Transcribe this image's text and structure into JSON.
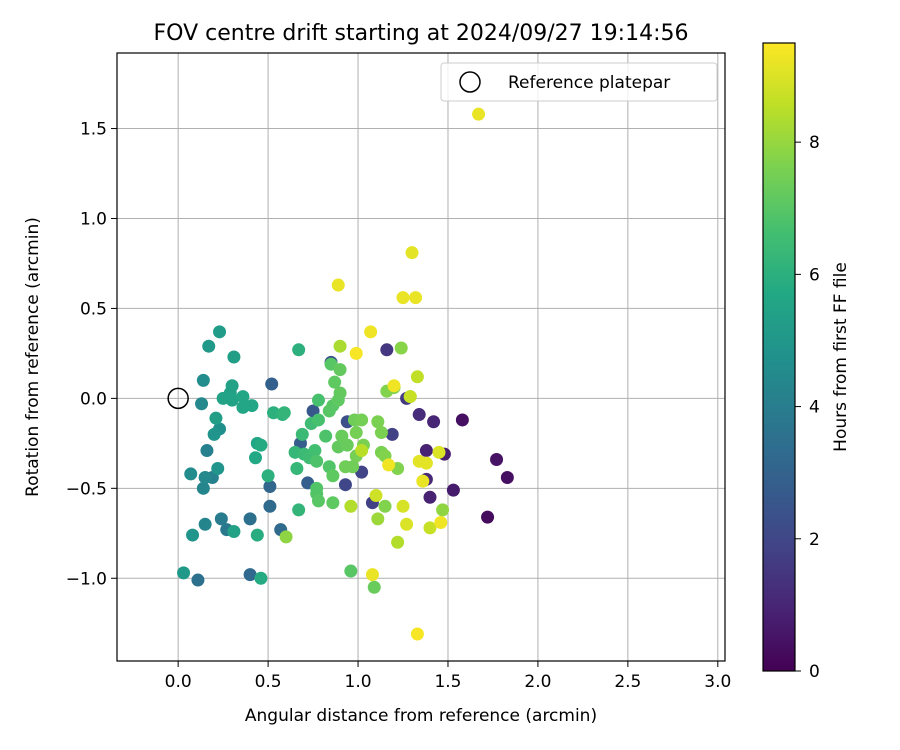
{
  "chart_data": {
    "type": "scatter",
    "title": "FOV centre drift starting at 2024/09/27 19:14:56",
    "xlabel": "Angular distance from reference (arcmin)",
    "ylabel": "Rotation from reference (arcmin)",
    "xlim": [
      -0.34,
      3.04
    ],
    "ylim": [
      -1.46,
      1.92
    ],
    "xticks": [
      "0.0",
      "0.5",
      "1.0",
      "1.5",
      "2.0",
      "2.5",
      "3.0"
    ],
    "xtick_values": [
      0,
      0.5,
      1.0,
      1.5,
      2.0,
      2.5,
      3.0
    ],
    "yticks": [
      "−1.0",
      "−0.5",
      "0.0",
      "0.5",
      "1.0",
      "1.5"
    ],
    "ytick_values": [
      -1.0,
      -0.5,
      0.0,
      0.5,
      1.0,
      1.5
    ],
    "grid": true,
    "legend": {
      "placement": "top-right",
      "entries": [
        "Reference platepar"
      ]
    },
    "reference_point": {
      "x": 0.0,
      "y": 0.0
    },
    "colorbar": {
      "label": "Hours from first FF file",
      "range": [
        0,
        9.5
      ],
      "ticks": [
        "0",
        "2",
        "4",
        "6",
        "8"
      ],
      "tick_values": [
        0,
        2,
        4,
        6,
        8
      ],
      "colormap": "viridis"
    },
    "points": [
      {
        "x": 1.58,
        "y": -0.12,
        "c": 0.4
      },
      {
        "x": 1.77,
        "y": -0.34,
        "c": 0.5
      },
      {
        "x": 1.83,
        "y": -0.44,
        "c": 0.4
      },
      {
        "x": 1.72,
        "y": -0.66,
        "c": 0.3
      },
      {
        "x": 1.53,
        "y": -0.51,
        "c": 0.7
      },
      {
        "x": 1.48,
        "y": -0.31,
        "c": 0.8
      },
      {
        "x": 1.42,
        "y": -0.13,
        "c": 1.0
      },
      {
        "x": 1.34,
        "y": -0.09,
        "c": 1.2
      },
      {
        "x": 1.38,
        "y": -0.29,
        "c": 0.9
      },
      {
        "x": 1.4,
        "y": -0.55,
        "c": 0.9
      },
      {
        "x": 1.38,
        "y": -0.45,
        "c": 1.1
      },
      {
        "x": 1.27,
        "y": 0.0,
        "c": 1.6
      },
      {
        "x": 1.16,
        "y": 0.27,
        "c": 1.5
      },
      {
        "x": 1.19,
        "y": -0.2,
        "c": 1.8
      },
      {
        "x": 1.08,
        "y": -0.58,
        "c": 1.8
      },
      {
        "x": 1.02,
        "y": -0.41,
        "c": 1.9
      },
      {
        "x": 0.93,
        "y": -0.48,
        "c": 2.0
      },
      {
        "x": 0.94,
        "y": -0.13,
        "c": 2.3
      },
      {
        "x": 0.85,
        "y": 0.2,
        "c": 2.4
      },
      {
        "x": 0.75,
        "y": -0.07,
        "c": 2.6
      },
      {
        "x": 0.72,
        "y": -0.47,
        "c": 2.8
      },
      {
        "x": 0.68,
        "y": -0.25,
        "c": 2.8
      },
      {
        "x": 0.52,
        "y": 0.08,
        "c": 2.9
      },
      {
        "x": 0.51,
        "y": -0.49,
        "c": 3.1
      },
      {
        "x": 0.51,
        "y": -0.6,
        "c": 3.3
      },
      {
        "x": 0.4,
        "y": -0.98,
        "c": 3.2
      },
      {
        "x": 0.57,
        "y": -0.73,
        "c": 3.3
      },
      {
        "x": 0.4,
        "y": -0.67,
        "c": 3.5
      },
      {
        "x": 0.11,
        "y": -1.01,
        "c": 3.5
      },
      {
        "x": 0.27,
        "y": -0.73,
        "c": 3.8
      },
      {
        "x": 0.24,
        "y": -0.67,
        "c": 3.9
      },
      {
        "x": 0.15,
        "y": -0.7,
        "c": 4.3
      },
      {
        "x": 0.16,
        "y": -0.29,
        "c": 4.1
      },
      {
        "x": 0.19,
        "y": -0.44,
        "c": 4.1
      },
      {
        "x": 0.14,
        "y": -0.5,
        "c": 4.3
      },
      {
        "x": 0.15,
        "y": -0.44,
        "c": 4.4
      },
      {
        "x": 0.13,
        "y": -0.03,
        "c": 4.4
      },
      {
        "x": 0.14,
        "y": 0.1,
        "c": 4.6
      },
      {
        "x": 0.23,
        "y": -0.17,
        "c": 4.7
      },
      {
        "x": 0.2,
        "y": -0.2,
        "c": 4.9
      },
      {
        "x": 0.22,
        "y": -0.39,
        "c": 4.9
      },
      {
        "x": 0.07,
        "y": -0.42,
        "c": 4.6
      },
      {
        "x": 0.08,
        "y": -0.76,
        "c": 4.9
      },
      {
        "x": 0.03,
        "y": -0.97,
        "c": 5.1
      },
      {
        "x": 0.17,
        "y": 0.29,
        "c": 5.1
      },
      {
        "x": 0.23,
        "y": 0.37,
        "c": 5.2
      },
      {
        "x": 0.31,
        "y": 0.23,
        "c": 5.3
      },
      {
        "x": 0.3,
        "y": 0.07,
        "c": 5.4
      },
      {
        "x": 0.29,
        "y": 0.03,
        "c": 5.4
      },
      {
        "x": 0.25,
        "y": 0.0,
        "c": 5.5
      },
      {
        "x": 0.3,
        "y": -0.01,
        "c": 5.5
      },
      {
        "x": 0.36,
        "y": 0.01,
        "c": 5.6
      },
      {
        "x": 0.36,
        "y": -0.05,
        "c": 5.6
      },
      {
        "x": 0.41,
        "y": -0.04,
        "c": 5.6
      },
      {
        "x": 0.21,
        "y": -0.11,
        "c": 5.3
      },
      {
        "x": 0.31,
        "y": -0.74,
        "c": 5.4
      },
      {
        "x": 0.44,
        "y": -0.25,
        "c": 5.6
      },
      {
        "x": 0.43,
        "y": -0.33,
        "c": 5.7
      },
      {
        "x": 0.46,
        "y": -0.26,
        "c": 5.8
      },
      {
        "x": 0.46,
        "y": -1.0,
        "c": 5.8
      },
      {
        "x": 0.44,
        "y": -0.76,
        "c": 5.9
      },
      {
        "x": 0.5,
        "y": -0.43,
        "c": 6.0
      },
      {
        "x": 0.53,
        "y": -0.08,
        "c": 6.0
      },
      {
        "x": 0.58,
        "y": -0.09,
        "c": 6.1
      },
      {
        "x": 0.59,
        "y": -0.08,
        "c": 6.2
      },
      {
        "x": 0.67,
        "y": 0.27,
        "c": 6.0
      },
      {
        "x": 0.65,
        "y": -0.3,
        "c": 6.3
      },
      {
        "x": 0.66,
        "y": -0.39,
        "c": 6.3
      },
      {
        "x": 0.67,
        "y": -0.62,
        "c": 6.2
      },
      {
        "x": 0.69,
        "y": -0.2,
        "c": 6.4
      },
      {
        "x": 0.7,
        "y": -0.31,
        "c": 6.4
      },
      {
        "x": 0.74,
        "y": -0.14,
        "c": 6.5
      },
      {
        "x": 0.73,
        "y": -0.33,
        "c": 6.5
      },
      {
        "x": 0.76,
        "y": -0.29,
        "c": 6.6
      },
      {
        "x": 0.78,
        "y": -0.12,
        "c": 6.7
      },
      {
        "x": 0.78,
        "y": -0.01,
        "c": 6.7
      },
      {
        "x": 0.77,
        "y": -0.35,
        "c": 6.8
      },
      {
        "x": 0.77,
        "y": -0.5,
        "c": 6.9
      },
      {
        "x": 0.77,
        "y": -0.53,
        "c": 6.9
      },
      {
        "x": 0.78,
        "y": -0.57,
        "c": 7.0
      },
      {
        "x": 0.82,
        "y": -0.21,
        "c": 6.8
      },
      {
        "x": 0.84,
        "y": -0.38,
        "c": 6.9
      },
      {
        "x": 0.84,
        "y": -0.07,
        "c": 7.0
      },
      {
        "x": 0.85,
        "y": 0.19,
        "c": 7.0
      },
      {
        "x": 0.86,
        "y": -0.04,
        "c": 7.0
      },
      {
        "x": 0.86,
        "y": -0.43,
        "c": 7.1
      },
      {
        "x": 0.86,
        "y": -0.58,
        "c": 7.1
      },
      {
        "x": 0.87,
        "y": 0.09,
        "c": 7.1
      },
      {
        "x": 0.89,
        "y": -0.01,
        "c": 7.1
      },
      {
        "x": 0.9,
        "y": 0.03,
        "c": 7.2
      },
      {
        "x": 0.9,
        "y": 0.16,
        "c": 7.2
      },
      {
        "x": 0.89,
        "y": -0.27,
        "c": 7.2
      },
      {
        "x": 0.91,
        "y": -0.21,
        "c": 7.3
      },
      {
        "x": 0.94,
        "y": -0.26,
        "c": 7.3
      },
      {
        "x": 0.93,
        "y": -0.38,
        "c": 7.4
      },
      {
        "x": 0.96,
        "y": -0.96,
        "c": 7.0
      },
      {
        "x": 0.97,
        "y": -0.38,
        "c": 7.4
      },
      {
        "x": 0.98,
        "y": -0.12,
        "c": 7.4
      },
      {
        "x": 0.99,
        "y": -0.19,
        "c": 7.5
      },
      {
        "x": 0.99,
        "y": -0.32,
        "c": 7.5
      },
      {
        "x": 1.02,
        "y": -0.12,
        "c": 7.5
      },
      {
        "x": 1.03,
        "y": -0.26,
        "c": 7.6
      },
      {
        "x": 1.09,
        "y": -1.05,
        "c": 7.3
      },
      {
        "x": 1.11,
        "y": -0.13,
        "c": 7.6
      },
      {
        "x": 1.13,
        "y": -0.19,
        "c": 7.6
      },
      {
        "x": 1.13,
        "y": -0.3,
        "c": 7.6
      },
      {
        "x": 1.15,
        "y": -0.32,
        "c": 7.7
      },
      {
        "x": 1.15,
        "y": -0.6,
        "c": 7.7
      },
      {
        "x": 1.16,
        "y": 0.04,
        "c": 7.7
      },
      {
        "x": 1.2,
        "y": 0.06,
        "c": 7.7
      },
      {
        "x": 1.22,
        "y": -0.39,
        "c": 7.7
      },
      {
        "x": 1.24,
        "y": 0.28,
        "c": 7.8
      },
      {
        "x": 1.29,
        "y": 0.01,
        "c": 7.8
      },
      {
        "x": 1.47,
        "y": -0.62,
        "c": 7.9
      },
      {
        "x": 0.6,
        "y": -0.77,
        "c": 7.9
      },
      {
        "x": 1.11,
        "y": -0.67,
        "c": 8.1
      },
      {
        "x": 0.9,
        "y": 0.29,
        "c": 8.3
      },
      {
        "x": 0.96,
        "y": -0.6,
        "c": 8.4
      },
      {
        "x": 1.02,
        "y": -0.29,
        "c": 8.5
      },
      {
        "x": 1.22,
        "y": -0.8,
        "c": 8.4
      },
      {
        "x": 1.33,
        "y": 0.12,
        "c": 8.6
      },
      {
        "x": 1.4,
        "y": -0.72,
        "c": 8.7
      },
      {
        "x": 1.1,
        "y": -0.54,
        "c": 8.8
      },
      {
        "x": 1.29,
        "y": 0.01,
        "c": 8.7
      },
      {
        "x": 1.25,
        "y": -0.6,
        "c": 8.9
      },
      {
        "x": 1.27,
        "y": -0.7,
        "c": 9.0
      },
      {
        "x": 1.45,
        "y": -0.3,
        "c": 9.0
      },
      {
        "x": 1.38,
        "y": -0.36,
        "c": 9.1
      },
      {
        "x": 1.34,
        "y": -0.35,
        "c": 9.1
      },
      {
        "x": 1.36,
        "y": -0.46,
        "c": 9.2
      },
      {
        "x": 1.46,
        "y": -0.69,
        "c": 9.3
      },
      {
        "x": 1.17,
        "y": -0.37,
        "c": 9.3
      },
      {
        "x": 1.2,
        "y": 0.07,
        "c": 9.3
      },
      {
        "x": 1.07,
        "y": 0.37,
        "c": 9.3
      },
      {
        "x": 0.99,
        "y": 0.25,
        "c": 9.4
      },
      {
        "x": 0.89,
        "y": 0.63,
        "c": 9.2
      },
      {
        "x": 1.25,
        "y": 0.56,
        "c": 9.2
      },
      {
        "x": 1.32,
        "y": 0.56,
        "c": 9.2
      },
      {
        "x": 1.3,
        "y": 0.81,
        "c": 9.1
      },
      {
        "x": 1.67,
        "y": 1.58,
        "c": 9.2
      },
      {
        "x": 1.08,
        "y": -0.98,
        "c": 9.2
      },
      {
        "x": 1.33,
        "y": -1.31,
        "c": 9.4
      }
    ]
  }
}
